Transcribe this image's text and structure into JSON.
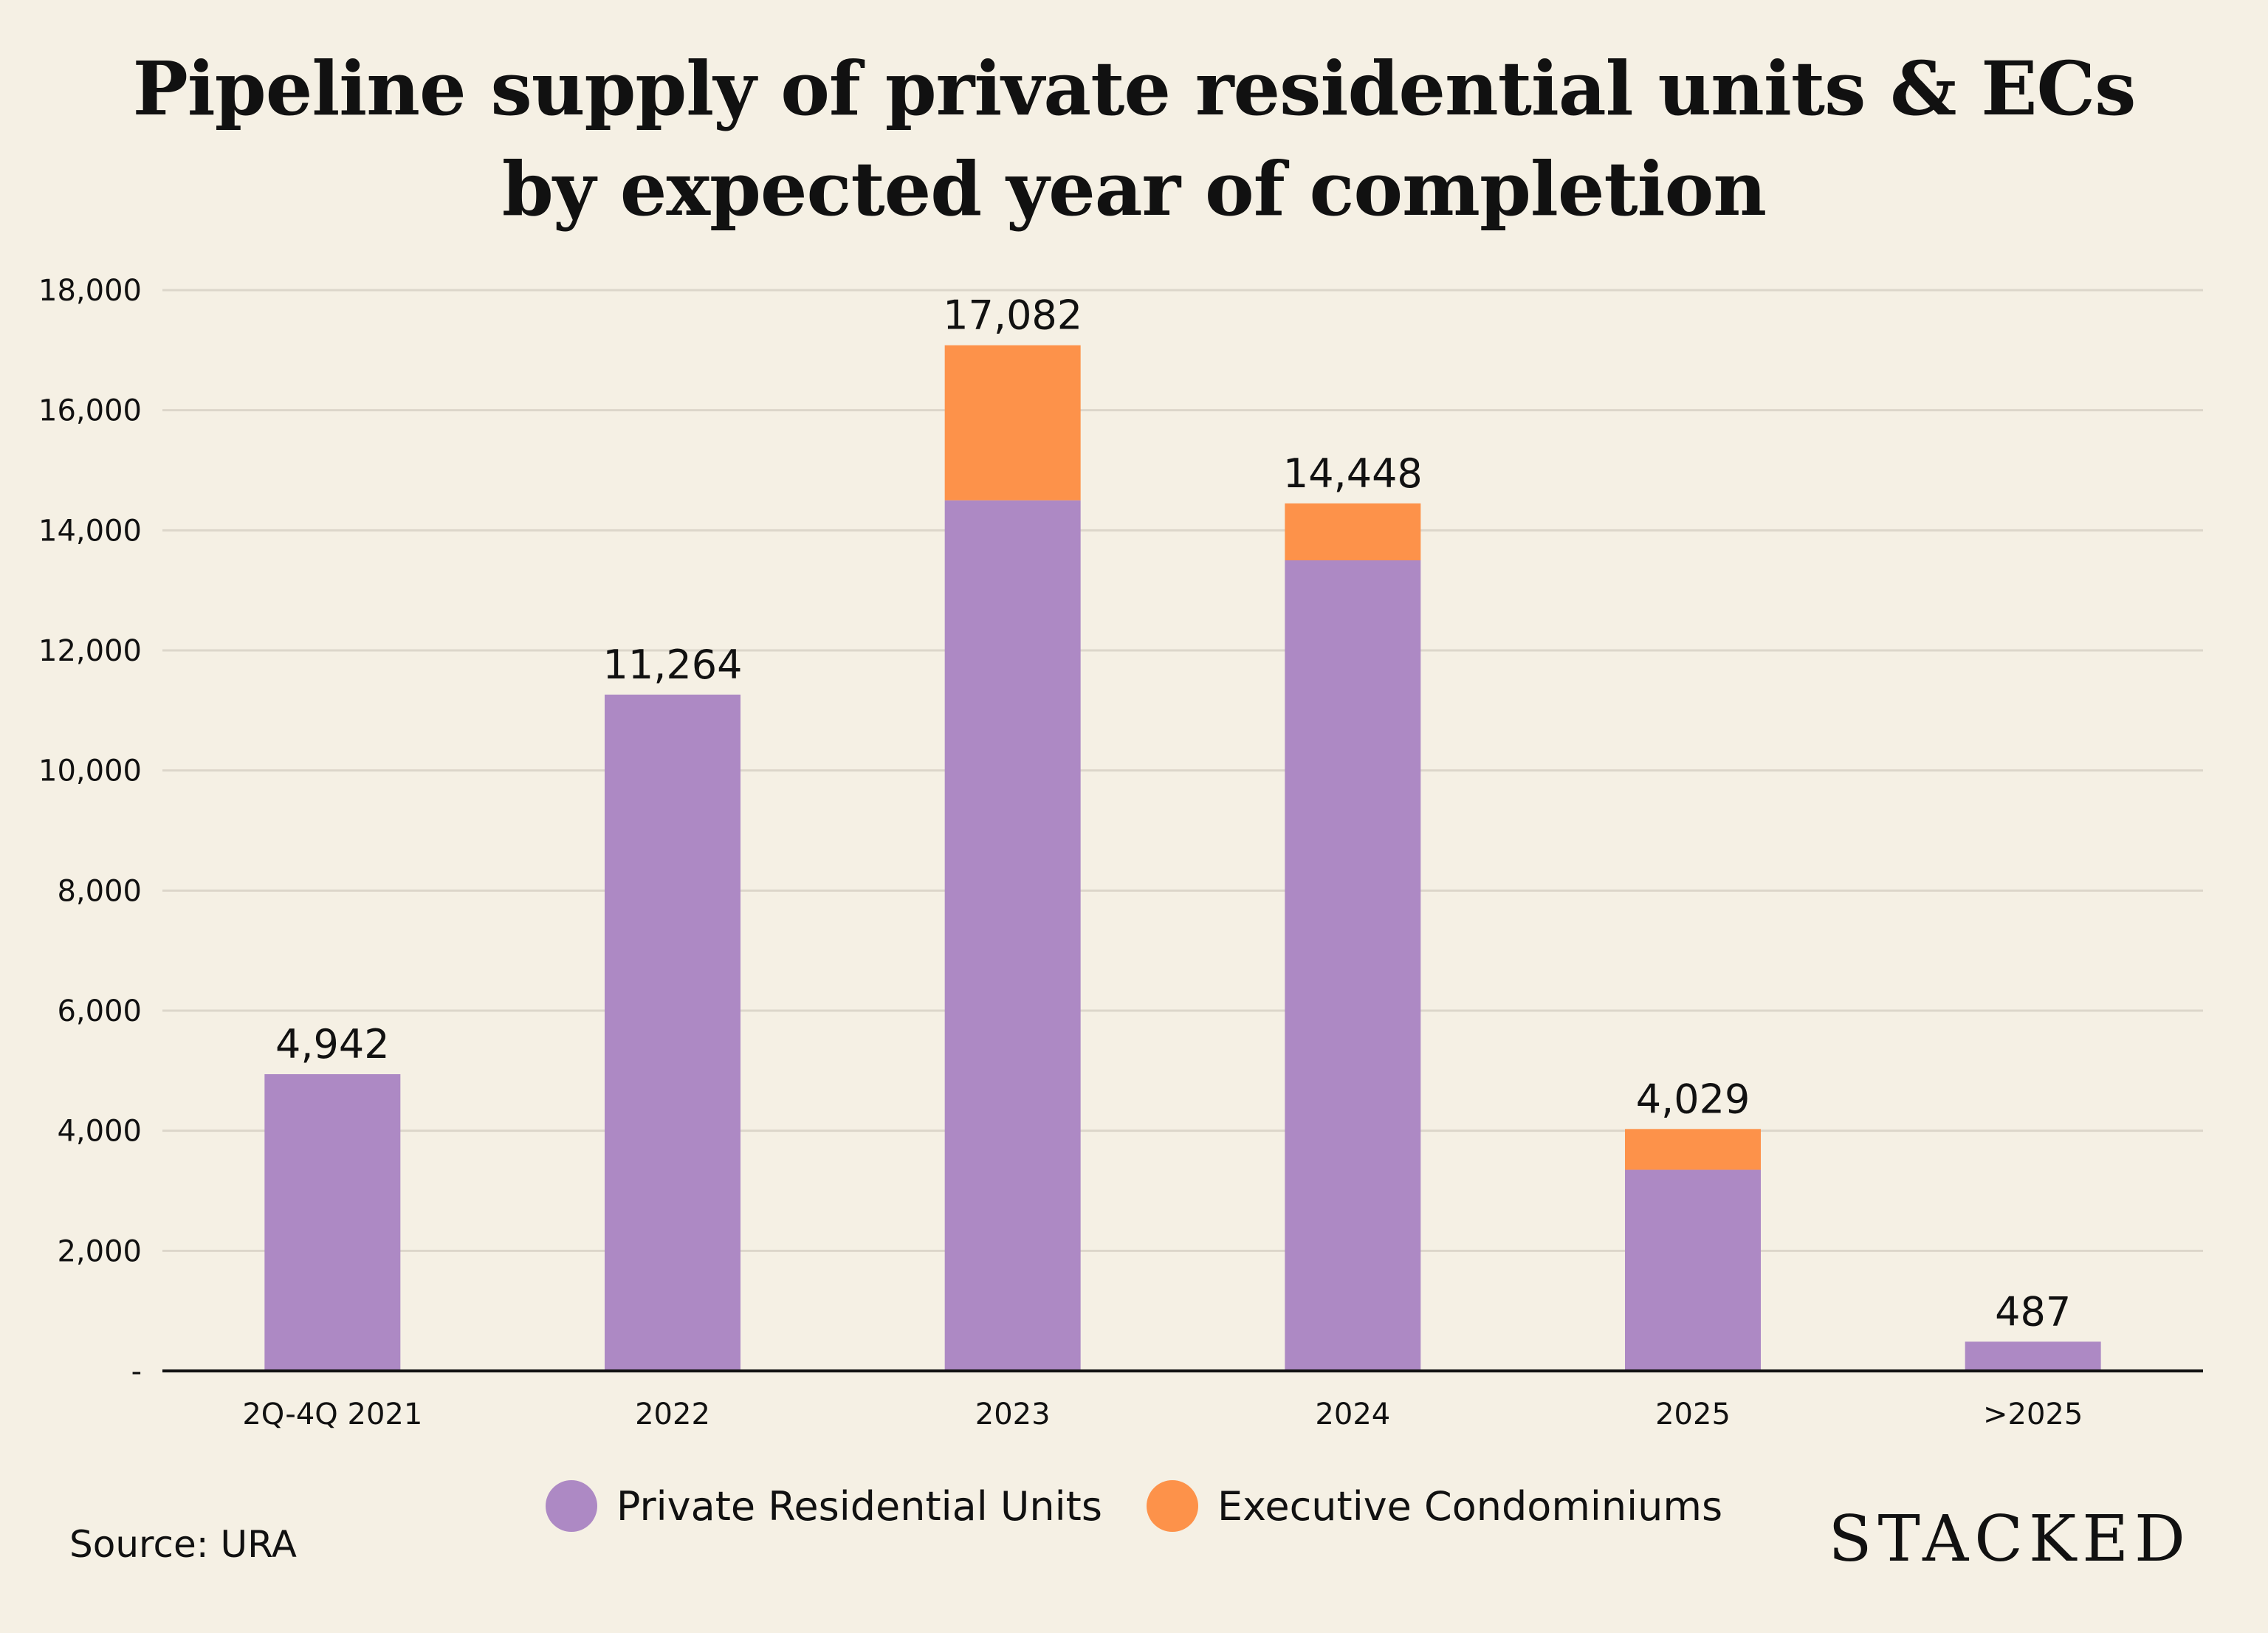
{
  "chart_data": {
    "type": "bar",
    "stacked": true,
    "title_lines": [
      "Pipeline supply of private residential units & ECs",
      "by expected year of completion"
    ],
    "categories": [
      "2Q-4Q 2021",
      "2022",
      "2023",
      "2024",
      "2025",
      ">2025"
    ],
    "series": [
      {
        "name": "Private Residential Units",
        "color": "#ad89c4",
        "values": [
          4942,
          11264,
          14500,
          13500,
          3350,
          487
        ]
      },
      {
        "name": "Executive Condominiums",
        "color": "#fd924a",
        "values": [
          0,
          0,
          2582,
          948,
          679,
          0
        ]
      }
    ],
    "totals": [
      4942,
      11264,
      17082,
      14448,
      4029,
      487
    ],
    "total_labels": [
      "4,942",
      "11,264",
      "17,082",
      "14,448",
      "4,029",
      "487"
    ],
    "ylim": [
      0,
      18000
    ],
    "yticks": [
      0,
      2000,
      4000,
      6000,
      8000,
      10000,
      12000,
      14000,
      16000,
      18000
    ],
    "ytick_labels": [
      "-",
      "2,000",
      "4,000",
      "6,000",
      "8,000",
      "10,000",
      "12,000",
      "14,000",
      "16,000",
      "18,000"
    ],
    "grid": true,
    "legend_position": "bottom-center",
    "xlabel": "",
    "ylabel": ""
  },
  "footer": {
    "source": "Source: URA",
    "brand": "STACKED"
  }
}
